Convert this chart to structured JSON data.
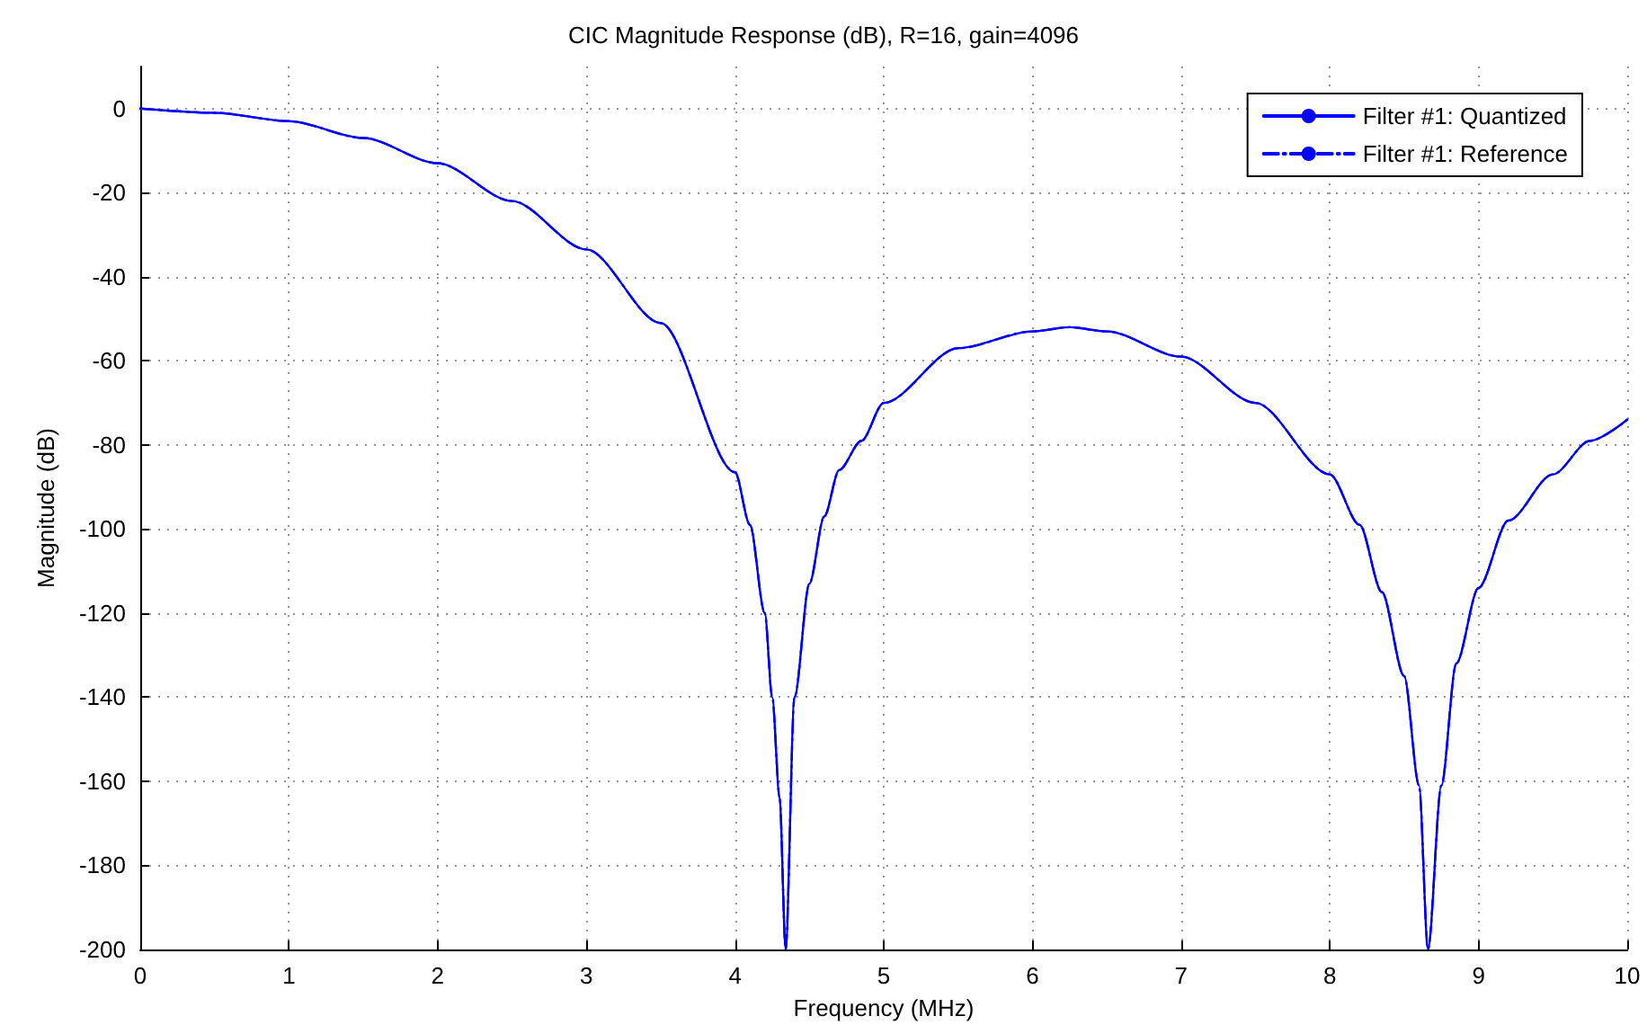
{
  "chart_data": {
    "type": "line",
    "title": "CIC Magnitude Response (dB), R=16, gain=4096",
    "xlabel": "Frequency (MHz)",
    "ylabel": "Magnitude (dB)",
    "x": [
      0,
      0.5,
      1,
      1.5,
      2,
      2.5,
      3,
      3.5,
      4,
      4.1,
      4.2,
      4.25,
      4.3,
      4.34,
      4.4,
      4.5,
      4.6,
      4.7,
      4.85,
      5,
      5.5,
      6,
      6.25,
      6.5,
      7,
      7.5,
      8,
      8.2,
      8.35,
      8.5,
      8.6,
      8.66,
      8.75,
      8.85,
      9,
      9.2,
      9.5,
      9.75,
      10
    ],
    "series": [
      {
        "name": "Filter #1: Quantized",
        "color": "#0000ff",
        "line_style": "solid",
        "values": [
          0,
          -1,
          -3,
          -7,
          -13,
          -22,
          -33.5,
          -51,
          -86.5,
          -99,
          -120,
          -140,
          -164,
          -200,
          -140,
          -113,
          -97,
          -86,
          -79,
          -70,
          -57,
          -53,
          -52,
          -53,
          -59,
          -70,
          -87,
          -99,
          -115,
          -135,
          -161,
          -200,
          -161,
          -132,
          -114,
          -98,
          -87,
          -79,
          -74
        ]
      },
      {
        "name": "Filter #1: Reference",
        "color": "#0000ff",
        "line_style": "dashdot",
        "values": [
          0,
          -1,
          -3,
          -7,
          -13,
          -22,
          -33.5,
          -51,
          -86.5,
          -99,
          -120,
          -140,
          -164,
          -200,
          -140,
          -113,
          -97,
          -86,
          -79,
          -70,
          -57,
          -53,
          -52,
          -53,
          -59,
          -70,
          -87,
          -99,
          -115,
          -135,
          -161,
          -200,
          -161,
          -132,
          -114,
          -98,
          -87,
          -79,
          -74
        ]
      }
    ],
    "xlim": [
      0,
      10
    ],
    "xticks": [
      0,
      1,
      2,
      3,
      4,
      5,
      6,
      7,
      8,
      9,
      10
    ],
    "ylim": [
      -200,
      10
    ],
    "yticks": [
      -200,
      -180,
      -160,
      -140,
      -120,
      -100,
      -80,
      -60,
      -40,
      -20,
      0
    ],
    "grid": true,
    "legend": "top right",
    "marker": "none"
  }
}
